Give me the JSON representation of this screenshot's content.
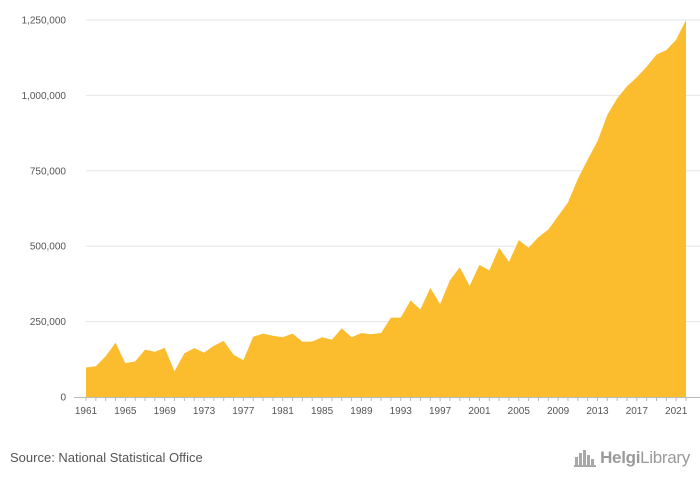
{
  "chart_data": {
    "type": "area",
    "color": "#fbbc2e",
    "x": [
      1961,
      1962,
      1963,
      1964,
      1965,
      1966,
      1967,
      1968,
      1969,
      1970,
      1971,
      1972,
      1973,
      1974,
      1975,
      1976,
      1977,
      1978,
      1979,
      1980,
      1981,
      1982,
      1983,
      1984,
      1985,
      1986,
      1987,
      1988,
      1989,
      1990,
      1991,
      1992,
      1993,
      1994,
      1995,
      1996,
      1997,
      1998,
      1999,
      2000,
      2001,
      2002,
      2003,
      2004,
      2005,
      2006,
      2007,
      2008,
      2009,
      2010,
      2011,
      2012,
      2013,
      2014,
      2015,
      2016,
      2017,
      2018,
      2019,
      2020,
      2021,
      2022
    ],
    "values": [
      98000,
      102000,
      135000,
      180000,
      112000,
      118000,
      157000,
      150000,
      163000,
      85000,
      145000,
      162000,
      147000,
      170000,
      186000,
      140000,
      122000,
      200000,
      210000,
      203000,
      198000,
      210000,
      183000,
      184000,
      198000,
      190000,
      228000,
      198000,
      212000,
      208000,
      212000,
      263000,
      263000,
      320000,
      290000,
      362000,
      308000,
      387000,
      430000,
      368000,
      438000,
      420000,
      495000,
      448000,
      520000,
      495000,
      530000,
      555000,
      600000,
      645000,
      723000,
      787000,
      848000,
      935000,
      990000,
      1030000,
      1060000,
      1095000,
      1135000,
      1150000,
      1185000,
      1250000
    ],
    "xticks": [
      "1961",
      "1965",
      "1969",
      "1973",
      "1977",
      "1981",
      "1985",
      "1989",
      "1993",
      "1997",
      "2001",
      "2005",
      "2009",
      "2013",
      "2017",
      "2021"
    ],
    "yticks": [
      0,
      250000,
      500000,
      750000,
      1000000,
      1250000
    ],
    "ytick_labels": [
      "0",
      "250,000",
      "500,000",
      "750,000",
      "1,000,000",
      "1,250,000"
    ],
    "ylim": [
      0,
      1250000
    ],
    "xlim": [
      1961,
      2022
    ],
    "title": "",
    "xlabel": "",
    "ylabel": "",
    "grid": true,
    "legend": "none"
  },
  "footer": {
    "source": "Source: National Statistical Office",
    "brand_a": "Helgi",
    "brand_b": "Library"
  },
  "icons": {
    "brand": "buildings-logo-icon"
  }
}
